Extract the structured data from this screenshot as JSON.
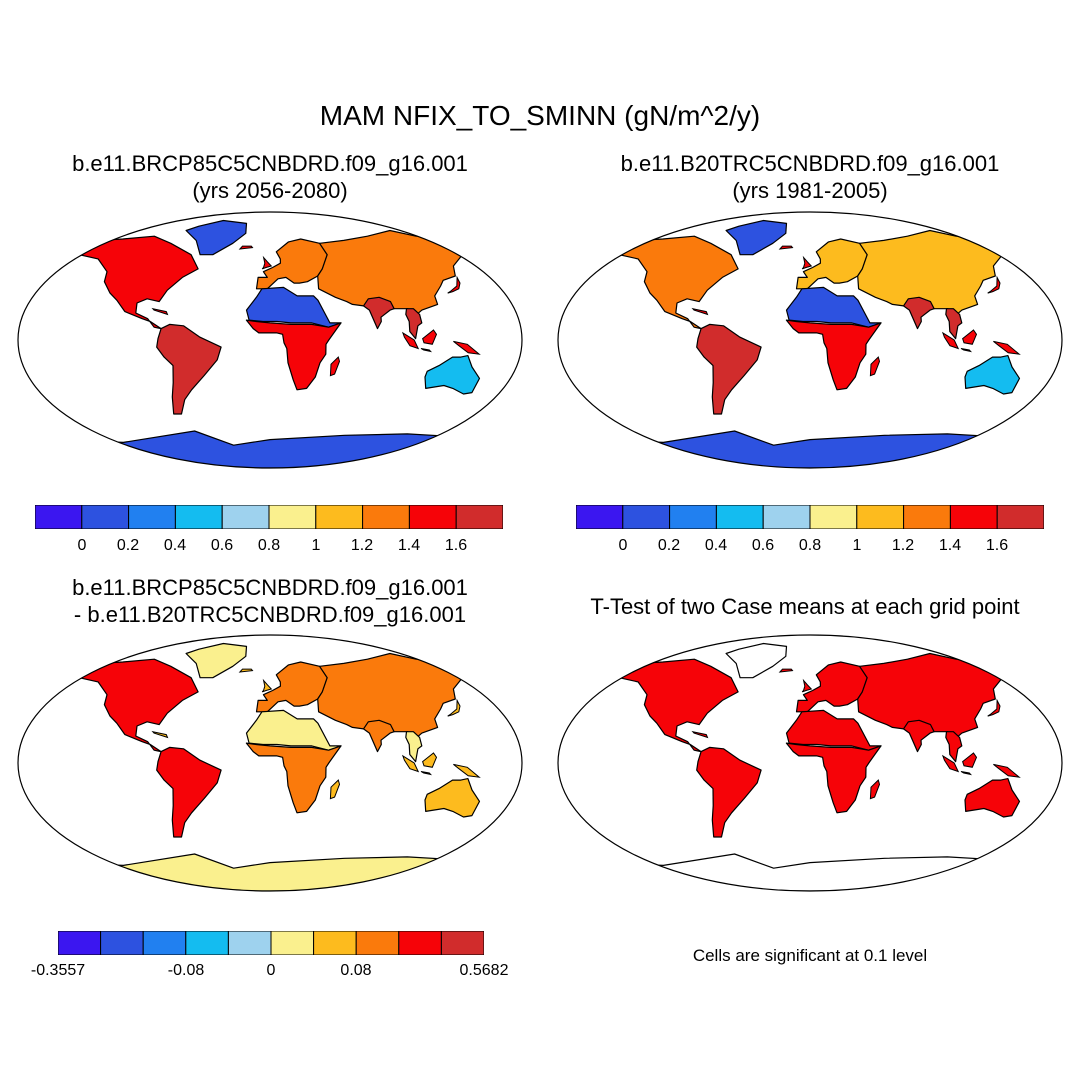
{
  "figure": {
    "title": "MAM NFIX_TO_SMINN (gN/m^2/y)",
    "footnote": "Cells are significant at 0.1 level"
  },
  "colors": {
    "scale": [
      "#3b16f0",
      "#2d52e0",
      "#2180f0",
      "#14bcf0",
      "#9ed2ee",
      "#faf08e",
      "#fdbb1e",
      "#fa7a0c",
      "#f60308",
      "#d12c2c"
    ],
    "ocean": "#ffffff",
    "coast": "#000000",
    "significant": "#f60308"
  },
  "panels": [
    {
      "id": "case1",
      "title_line1": "b.e11.BRCP85C5CNBDRD.f09_g16.001",
      "title_line2": "(yrs 2056-2080)",
      "colorbar_labels": [
        "0",
        "0.2",
        "0.4",
        "0.6",
        "0.8",
        "1",
        "1.2",
        "1.4",
        "1.6"
      ],
      "region_levels": {
        "north_america": 8,
        "greenland": 1,
        "south_america": 9,
        "europe": 7,
        "africa_north": 1,
        "africa_south": 8,
        "asia": 7,
        "india": 9,
        "se_asia": 9,
        "australia": 3,
        "antarctica": 1
      }
    },
    {
      "id": "case2",
      "title_line1": "b.e11.B20TRC5CNBDRD.f09_g16.001",
      "title_line2": "(yrs 1981-2005)",
      "colorbar_labels": [
        "0",
        "0.2",
        "0.4",
        "0.6",
        "0.8",
        "1",
        "1.2",
        "1.4",
        "1.6"
      ],
      "region_levels": {
        "north_america": 7,
        "greenland": 1,
        "south_america": 9,
        "europe": 6,
        "africa_north": 1,
        "africa_south": 8,
        "asia": 6,
        "india": 9,
        "se_asia": 9,
        "australia": 3,
        "antarctica": 1
      }
    },
    {
      "id": "difference",
      "title_line1": "b.e11.BRCP85C5CNBDRD.f09_g16.001",
      "title_line2": "- b.e11.B20TRC5CNBDRD.f09_g16.001",
      "colorbar_labels": [
        "-0.3557",
        "-0.08",
        "0",
        "0.08",
        "0.5682"
      ],
      "region_levels": {
        "north_america": 8,
        "greenland": 5,
        "south_america": 8,
        "europe": 7,
        "africa_north": 5,
        "africa_south": 7,
        "asia": 7,
        "india": 7,
        "se_asia": 5,
        "australia": 6,
        "antarctica": 5
      }
    },
    {
      "id": "ttest",
      "title_line1": "T-Test of two Case means at each grid point"
    }
  ]
}
